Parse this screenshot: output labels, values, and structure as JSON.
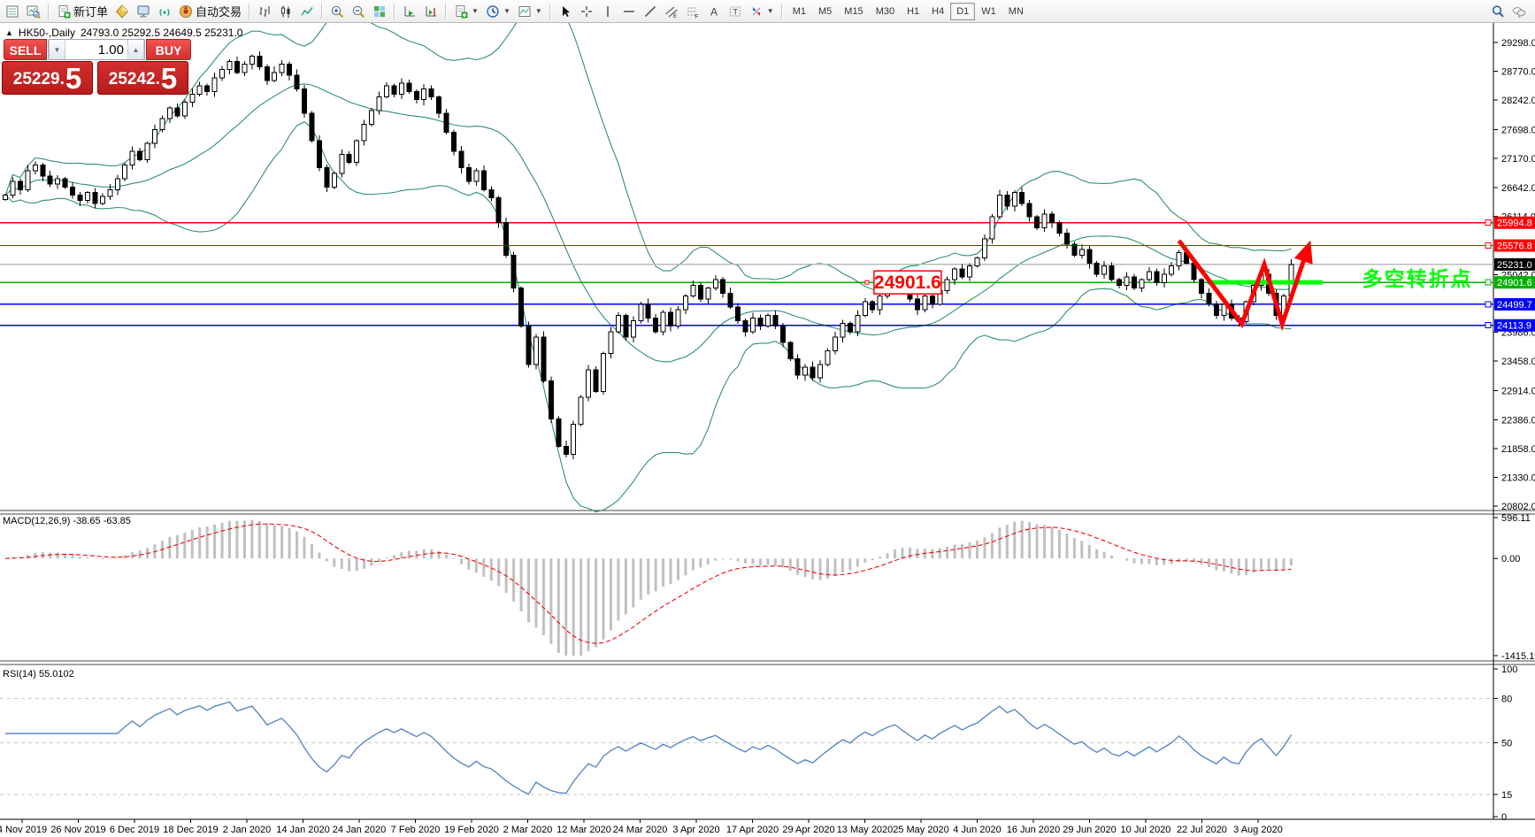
{
  "toolbar": {
    "groups": [
      {
        "items": [
          {
            "name": "market-watch",
            "icon": "mw"
          },
          {
            "name": "data-window",
            "icon": "dw"
          }
        ]
      },
      {
        "items": [
          {
            "name": "new-order",
            "icon": "docplus",
            "label": "新订单"
          },
          {
            "name": "metaeditor",
            "icon": "diamond"
          },
          {
            "name": "terminal",
            "icon": "monitor"
          },
          {
            "name": "signals",
            "icon": "signal"
          },
          {
            "name": "autotrading",
            "icon": "auto",
            "label": "自动交易"
          }
        ]
      },
      {
        "items": [
          {
            "name": "bar-chart",
            "icon": "bars"
          },
          {
            "name": "candlestick-chart",
            "icon": "candles"
          },
          {
            "name": "line-chart",
            "icon": "linechart"
          }
        ]
      },
      {
        "items": [
          {
            "name": "zoom-in",
            "icon": "zoomin"
          },
          {
            "name": "zoom-out",
            "icon": "zoomout"
          },
          {
            "name": "tile-windows",
            "icon": "tiles"
          }
        ]
      },
      {
        "items": [
          {
            "name": "auto-scroll",
            "icon": "autoscroll"
          },
          {
            "name": "chart-shift",
            "icon": "chartshift"
          }
        ]
      },
      {
        "items": [
          {
            "name": "indicators-list",
            "icon": "docplus",
            "dropdown": true
          },
          {
            "name": "periods",
            "icon": "clock",
            "dropdown": true
          },
          {
            "name": "templates",
            "icon": "template",
            "dropdown": true
          }
        ]
      },
      {
        "items": [
          {
            "name": "cursor",
            "icon": "cursor"
          },
          {
            "name": "crosshair",
            "icon": "crosshair"
          },
          {
            "name": "vertical-line",
            "icon": "vline"
          },
          {
            "name": "horizontal-line",
            "icon": "hline"
          },
          {
            "name": "trendline",
            "icon": "tline"
          },
          {
            "name": "equidistant-channel",
            "icon": "channel"
          },
          {
            "name": "fibonacci",
            "icon": "fibo"
          },
          {
            "name": "text",
            "icon": "textA"
          },
          {
            "name": "text-label",
            "icon": "textT"
          },
          {
            "name": "arrows",
            "icon": "arrows",
            "dropdown": true
          }
        ]
      }
    ],
    "timeframes": [
      "M1",
      "M5",
      "M15",
      "M30",
      "H1",
      "H4",
      "D1",
      "W1",
      "MN"
    ],
    "active_timeframe": "D1",
    "right_icons": [
      {
        "name": "search",
        "icon": "search"
      },
      {
        "name": "chat",
        "icon": "chat"
      }
    ]
  },
  "chart_title": {
    "collapse_glyph": "▲",
    "symbol_period": "HK50-,Daily",
    "ohlc_text": "24793.0 25292.5 24649.5 25231.0"
  },
  "trade_panel": {
    "sell_label": "SELL",
    "buy_label": "BUY",
    "volume": "1.00",
    "spin_down": "▼",
    "spin_up": "▲",
    "sell_price": {
      "main": "25229.",
      "pips": "5"
    },
    "buy_price": {
      "main": "25242.",
      "pips": "5"
    }
  },
  "chart_data": {
    "type": "candlestick+indicators",
    "symbol": "HK50-",
    "timeframe": "Daily",
    "price_axis": {
      "ticks": [
        {
          "label": "29298.0",
          "value": 29298
        },
        {
          "label": "28770.0",
          "value": 28770
        },
        {
          "label": "28242.0",
          "value": 28242
        },
        {
          "label": "27698.0",
          "value": 27698
        },
        {
          "label": "27170.0",
          "value": 27170
        },
        {
          "label": "26642.0",
          "value": 26642
        },
        {
          "label": "26114.0",
          "value": 26114
        },
        {
          "label": "25042.0",
          "value": 25042
        },
        {
          "label": "23986.0",
          "value": 23986
        },
        {
          "label": "23458.0",
          "value": 23458
        },
        {
          "label": "22914.0",
          "value": 22914
        },
        {
          "label": "22386.0",
          "value": 22386
        },
        {
          "label": "21858.0",
          "value": 21858
        },
        {
          "label": "21330.0",
          "value": 21330
        },
        {
          "label": "20802.0",
          "value": 20802
        }
      ],
      "top_value": 29298,
      "bottom_value": 20802
    },
    "levels": [
      {
        "label": "25994.8",
        "value": 25994.8,
        "color": "#ff0000",
        "kind": "resistance"
      },
      {
        "label": "25576.8",
        "value": 25576.8,
        "color": "#ff0000",
        "kind": "resistance"
      },
      {
        "label": "25231.0",
        "value": 25231.0,
        "color": "#000000",
        "kind": "bid"
      },
      {
        "label": "24901.6",
        "value": 24901.6,
        "color": "#00b000",
        "kind": "pivot"
      },
      {
        "label": "24499.7",
        "value": 24499.7,
        "color": "#0000ff",
        "kind": "support"
      },
      {
        "label": "24113.9",
        "value": 24113.9,
        "color": "#0000ff",
        "kind": "support"
      }
    ],
    "closes": [
      26500,
      26750,
      26600,
      26950,
      27050,
      26850,
      26700,
      26800,
      26650,
      26500,
      26400,
      26550,
      26350,
      26480,
      26600,
      26800,
      27050,
      27300,
      27150,
      27450,
      27700,
      27900,
      28100,
      27950,
      28200,
      28350,
      28500,
      28400,
      28650,
      28800,
      28950,
      28750,
      28900,
      29050,
      28850,
      28600,
      28750,
      28900,
      28700,
      28450,
      28000,
      27500,
      27000,
      26650,
      26900,
      27250,
      27100,
      27500,
      27800,
      28050,
      28300,
      28500,
      28350,
      28550,
      28400,
      28250,
      28450,
      28300,
      28000,
      27650,
      27300,
      27000,
      26750,
      26950,
      26600,
      26450,
      26000,
      25400,
      24800,
      24100,
      23400,
      23900,
      23100,
      22400,
      21900,
      21750,
      22300,
      22800,
      23300,
      22900,
      23600,
      24000,
      24300,
      23900,
      24200,
      24500,
      24250,
      24000,
      24350,
      24100,
      24400,
      24650,
      24850,
      24600,
      24800,
      24950,
      24700,
      24450,
      24200,
      24000,
      24250,
      24100,
      24300,
      24100,
      23800,
      23500,
      23200,
      23350,
      23150,
      23400,
      23650,
      23900,
      24150,
      24000,
      24300,
      24550,
      24400,
      24650,
      24850,
      25000,
      24800,
      24600,
      24400,
      24650,
      24500,
      24750,
      24950,
      25150,
      25000,
      25200,
      25350,
      25700,
      26100,
      26500,
      26300,
      26550,
      26350,
      26100,
      25900,
      26150,
      26000,
      25800,
      25600,
      25400,
      25500,
      25250,
      25050,
      25200,
      24950,
      24850,
      25000,
      24800,
      24950,
      25100,
      24900,
      25050,
      25200,
      25450,
      25250,
      24950,
      24700,
      24500,
      24300,
      24500,
      24250,
      24180,
      24550,
      24850,
      25050,
      24700,
      24300,
      24650,
      25231
    ],
    "bollinger": {
      "period": 20,
      "deviation": 2,
      "color": "#2f9463"
    },
    "macd": {
      "label": "MACD(12,26,9) -38.65 -63.85",
      "fast": 12,
      "slow": 26,
      "signal": 9,
      "scale": [
        "596.11",
        "0.00",
        "-1415.19"
      ],
      "scale_values": [
        596.11,
        0,
        -1415.19
      ],
      "histogram_color": "#c0c0c0",
      "signal_color": "#ff0000"
    },
    "rsi": {
      "label": "RSI(14) 55.0102",
      "period": 14,
      "scale": [
        "100",
        "80",
        "50",
        "15",
        "0"
      ],
      "scale_values": [
        100,
        80,
        50,
        15,
        0
      ],
      "level_lines": [
        80,
        50,
        15
      ],
      "line_color": "#5b87c5"
    },
    "x_axis": {
      "labels": [
        "4 Nov 2019",
        "26 Nov 2019",
        "6 Dec 2019",
        "18 Dec 2019",
        "2 Jan 2020",
        "14 Jan 2020",
        "24 Jan 2020",
        "7 Feb 2020",
        "19 Feb 2020",
        "2 Mar 2020",
        "12 Mar 2020",
        "24 Mar 2020",
        "3 Apr 2020",
        "17 Apr 2020",
        "29 Apr 2020",
        "13 May 2020",
        "25 May 2020",
        "4 Jun 2020",
        "16 Jun 2020",
        "29 Jun 2020",
        "10 Jul 2020",
        "22 Jul 2020",
        "3 Aug 2020"
      ]
    },
    "annotations": {
      "callout": {
        "bar": 116.2,
        "price": 24901.6,
        "text": "24901.6",
        "color": "#ff0000"
      },
      "thick_line": {
        "price": 24901.6,
        "bar_from": 160.8,
        "bar_to": 176.2,
        "color": "#00ff00",
        "width": 5
      },
      "zigzag": {
        "color": "#ff0000",
        "width": 5,
        "points": [
          [
            157,
            25666
          ],
          [
            165.4,
            24141
          ],
          [
            168.4,
            25228
          ],
          [
            170.8,
            24141
          ],
          [
            174.1,
            25471
          ]
        ]
      },
      "turning_text": {
        "bar": 181.5,
        "price": 24840,
        "text": "多空转折点",
        "color": "#00ff00"
      }
    }
  }
}
